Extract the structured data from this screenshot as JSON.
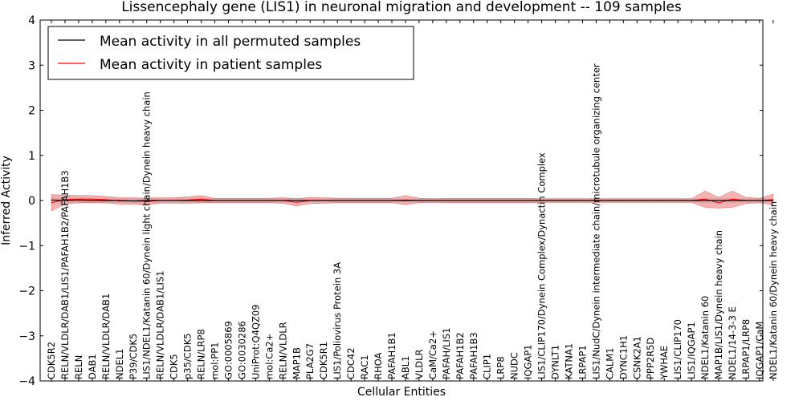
{
  "chart_data": {
    "type": "line",
    "title": "Lissencephaly gene (LIS1) in neuronal migration and development -- 109 samples",
    "xlabel": "Cellular Entities",
    "ylabel": "Inferred Activity",
    "ylim": [
      -4,
      4
    ],
    "yticks": [
      "−4",
      "−3",
      "−2",
      "−1",
      "0",
      "1",
      "2",
      "3",
      "4"
    ],
    "legend_position": "top-left",
    "colors": {
      "permuted": "#000000",
      "patient": "#ff0000",
      "patient_band": "#f08080",
      "permuted_band": "#b8b8b8"
    },
    "categories": [
      "CDK5R2",
      "RELN/VLDLR/DAB1/LIS1/PAFAH1B2/PAFAH1B3",
      "RELN",
      "DAB1",
      "RELN/VLDLR/DAB1",
      "NDEL1",
      "P39/CDK5",
      "LIS1/NDEL1/Katanin 60/Dynein light chain/Dynein heavy chain",
      "RELN/VLDLR/DAB1/LIS1",
      "CDK5",
      "p35/CDK5",
      "RELN/LRP8",
      "mol:PP1",
      "GO:0005869",
      "GO:0030286",
      "UniProt:Q4QZ09",
      "mol:Ca2+",
      "RELN/VLDLR",
      "MAP1B",
      "PLA2G7",
      "CDK5R1",
      "LIS1/Poliovirus Protein 3A",
      "CDC42",
      "RAC1",
      "RHOA",
      "PAFAH1B1",
      "ABL1",
      "VLDLR",
      "CaM/Ca2+",
      "PAFAH/LIS1",
      "PAFAH1B2",
      "PAFAH1B3",
      "CLIP1",
      "LRP8",
      "NUDC",
      "IQGAP1",
      "LIS1/CLIP170/Dynein Complex/Dynactin Complex",
      "DYNLT1",
      "KATNA1",
      "LRPAP1",
      "LIS1/NudC/Dynein intermediate chain/microtubule organizing center",
      "CALM1",
      "DYNC1H1",
      "CSNK2A1",
      "PPP2R5D",
      "YWHAE",
      "LIS1/CLIP170",
      "LIS1/IQGAP1",
      "NDEL1/Katanin 60",
      "MAP1B/LIS1/Dynein heavy chain",
      "NDEL1/14-3-3 E",
      "LRPAP1/LRP8",
      "IQGAP1/CaM",
      "NDEL1/Katanin 60/Dynein heavy chain"
    ],
    "series": [
      {
        "name": "Mean activity in all permuted samples",
        "values": [
          0.01,
          0.0,
          0.01,
          0.0,
          0.0,
          0.0,
          -0.01,
          0.0,
          0.0,
          0.0,
          0.0,
          0.0,
          0.0,
          0.0,
          0.0,
          0.0,
          0.0,
          0.0,
          0.0,
          0.0,
          0.0,
          0.0,
          0.0,
          0.0,
          0.0,
          0.0,
          0.0,
          0.0,
          0.0,
          0.0,
          0.0,
          0.0,
          0.0,
          0.0,
          0.0,
          0.0,
          0.0,
          0.0,
          0.0,
          0.0,
          0.0,
          0.0,
          0.0,
          0.0,
          0.0,
          0.0,
          0.0,
          0.0,
          0.0,
          0.0,
          0.0,
          0.0,
          0.0,
          0.0
        ],
        "band": [
          0.08,
          0.07,
          0.07,
          0.06,
          0.06,
          0.06,
          0.06,
          0.07,
          0.06,
          0.06,
          0.06,
          0.06,
          0.05,
          0.05,
          0.05,
          0.05,
          0.05,
          0.06,
          0.06,
          0.05,
          0.05,
          0.06,
          0.06,
          0.06,
          0.06,
          0.05,
          0.05,
          0.05,
          0.05,
          0.05,
          0.05,
          0.05,
          0.05,
          0.05,
          0.05,
          0.05,
          0.05,
          0.05,
          0.05,
          0.05,
          0.05,
          0.05,
          0.05,
          0.05,
          0.05,
          0.05,
          0.05,
          0.05,
          0.06,
          0.06,
          0.06,
          0.05,
          0.05,
          0.05
        ]
      },
      {
        "name": "Mean activity in patient samples",
        "values": [
          -0.05,
          0.02,
          0.03,
          0.03,
          0.02,
          -0.01,
          -0.01,
          -0.02,
          0.0,
          0.0,
          0.01,
          0.03,
          0.0,
          0.0,
          0.0,
          0.0,
          0.0,
          0.0,
          -0.04,
          0.0,
          0.0,
          0.0,
          0.0,
          0.0,
          0.0,
          0.0,
          0.01,
          0.0,
          0.0,
          0.0,
          0.0,
          0.0,
          0.0,
          0.0,
          0.0,
          0.0,
          0.0,
          0.0,
          0.0,
          0.0,
          0.0,
          0.0,
          0.0,
          0.0,
          0.0,
          0.0,
          0.0,
          0.0,
          0.03,
          -0.05,
          0.03,
          0.0,
          0.0,
          0.02
        ],
        "band": [
          0.18,
          0.1,
          0.08,
          0.08,
          0.07,
          0.07,
          0.07,
          0.07,
          0.06,
          0.06,
          0.07,
          0.08,
          0.05,
          0.05,
          0.05,
          0.05,
          0.05,
          0.06,
          0.08,
          0.07,
          0.06,
          0.05,
          0.05,
          0.05,
          0.05,
          0.05,
          0.1,
          0.05,
          0.04,
          0.05,
          0.05,
          0.05,
          0.05,
          0.05,
          0.05,
          0.05,
          0.04,
          0.04,
          0.04,
          0.04,
          0.04,
          0.04,
          0.04,
          0.04,
          0.04,
          0.04,
          0.04,
          0.04,
          0.18,
          0.12,
          0.18,
          0.07,
          0.05,
          0.12
        ]
      }
    ]
  }
}
